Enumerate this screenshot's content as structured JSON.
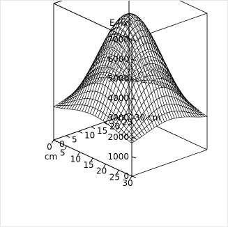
{
  "chart_data": {
    "type": "surface",
    "zlabel": "E [lx]",
    "xlabel": "cm",
    "ylabel": "cm",
    "x_unit_label": "30 cm",
    "x_ticks": [
      0,
      5,
      10,
      15,
      20,
      25,
      30
    ],
    "y_ticks": [
      0,
      5,
      10,
      15,
      20,
      25,
      30
    ],
    "z_ticks": [
      0,
      1000,
      2000,
      3000,
      4000,
      5000,
      6000,
      7000
    ],
    "x_range": [
      0,
      30
    ],
    "y_range": [
      0,
      30
    ],
    "z_range": [
      0,
      7000
    ],
    "surface": {
      "peak_value": 6700,
      "corner_value": 1700,
      "edge_midpoint_value": 3500,
      "grid_lines": 30
    },
    "box": true,
    "colors": {
      "mesh": "#000000",
      "surface": "#ffffff",
      "box": "#000000"
    }
  }
}
